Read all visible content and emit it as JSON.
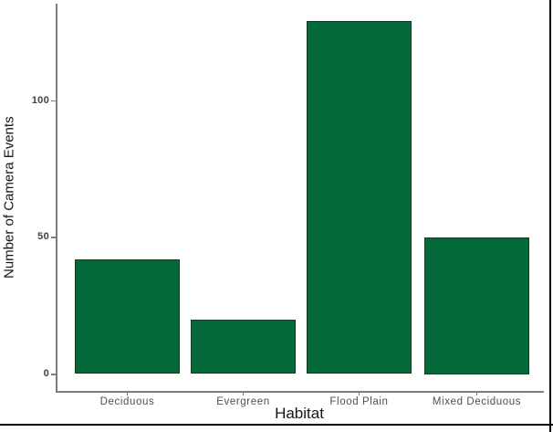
{
  "chart_data": {
    "type": "bar",
    "title": "",
    "categories": [
      "Deciduous",
      "Evergreen",
      "Flood Plain",
      "Mixed Deciduous"
    ],
    "values": [
      42,
      20,
      129,
      50
    ],
    "xlabel": "Habitat",
    "ylabel": "Number of Camera Events",
    "yticks": [
      0,
      50,
      100
    ],
    "ylim": [
      0,
      135
    ],
    "grid": false,
    "legend": "none",
    "bar_fill_color": "#036938",
    "bar_border_color": "#123c20",
    "axis_line_color": "#7d7d7d",
    "tick_label_color": "#424242",
    "category_label_color": "#4f4f4f",
    "frame_border_color": "#000000",
    "background_color": "#ffffff"
  }
}
